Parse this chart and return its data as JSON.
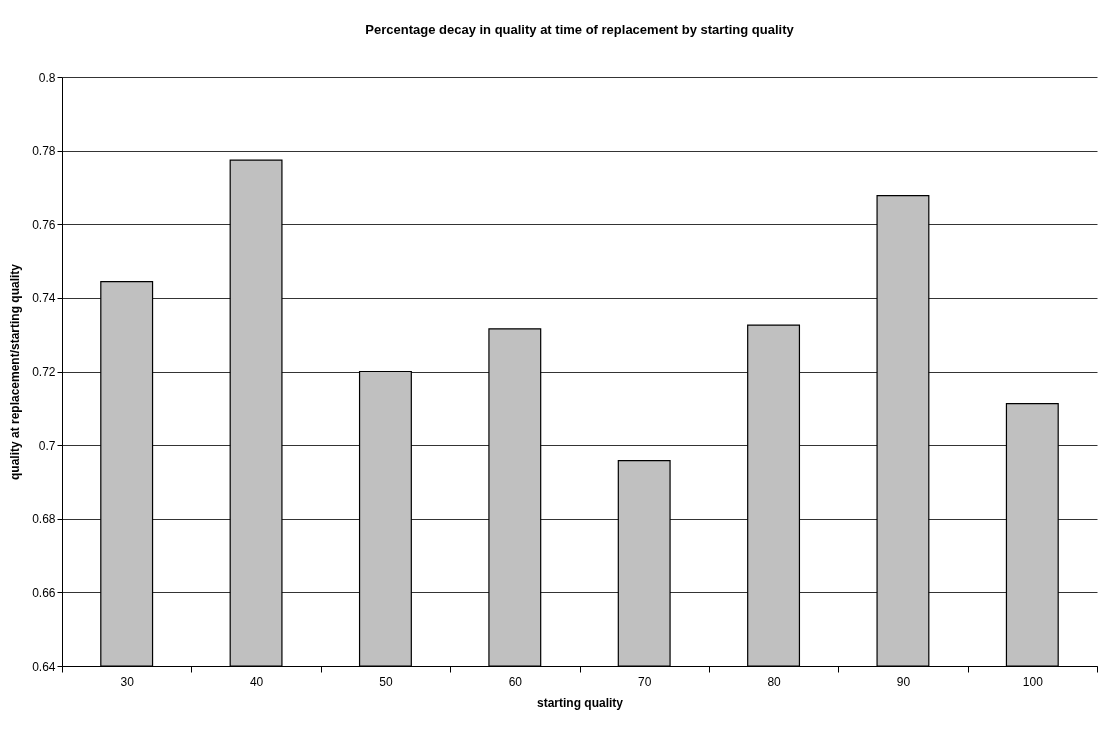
{
  "chart_data": {
    "type": "bar",
    "title": "Percentage decay in quality at time of replacement by starting quality",
    "xlabel": "starting quality",
    "ylabel": "quality at replacement/starting quality",
    "categories": [
      "30",
      "40",
      "50",
      "60",
      "70",
      "80",
      "90",
      "100"
    ],
    "values": [
      0.7444,
      0.7774,
      0.72,
      0.7316,
      0.6958,
      0.7326,
      0.7678,
      0.7113
    ],
    "color": "#c0c0c0",
    "ylim": [
      0.64,
      0.8
    ],
    "yticks": [
      0.64,
      0.66,
      0.68,
      0.7,
      0.72,
      0.74,
      0.76,
      0.78,
      0.8
    ],
    "grid": "y"
  }
}
